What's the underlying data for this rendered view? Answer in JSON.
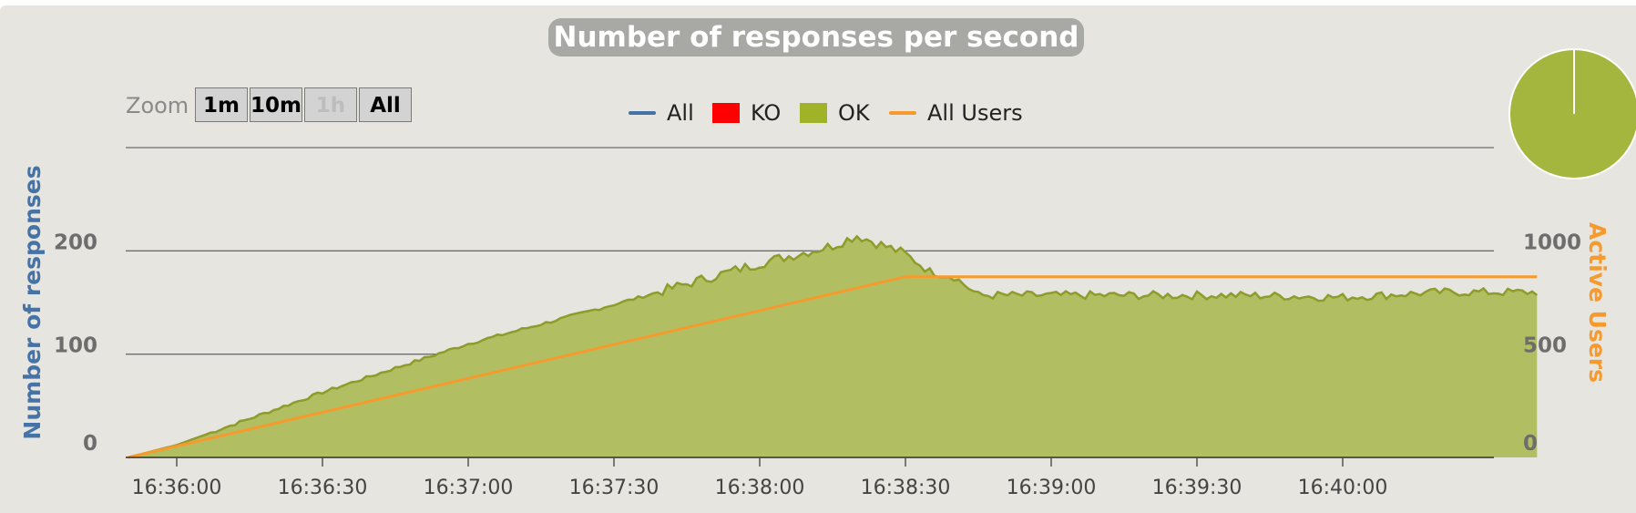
{
  "chart_data": {
    "type": "area",
    "title": "Number of responses per second",
    "ylabel": "Number of responses",
    "y2label": "Active Users",
    "ylim": [
      0,
      300
    ],
    "y2lim": [
      0,
      1500
    ],
    "yticks": [
      "0",
      "100",
      "200"
    ],
    "y2ticks": [
      "0",
      "500",
      "1000"
    ],
    "xticks": [
      "16:36:00",
      "16:36:30",
      "16:37:00",
      "16:37:30",
      "16:38:00",
      "16:38:30",
      "16:39:00",
      "16:39:30",
      "16:40:00"
    ],
    "legend": [
      {
        "name": "All",
        "color": "#4572a7",
        "kind": "line"
      },
      {
        "name": "KO",
        "color": "#ff0000",
        "kind": "box"
      },
      {
        "name": "OK",
        "color": "#a0b228",
        "kind": "box"
      },
      {
        "name": "All Users",
        "color": "#f79a2e",
        "kind": "line"
      }
    ],
    "x_start_seconds": -10,
    "series": [
      {
        "name": "OK",
        "color": "#a0b228",
        "points": [
          [
            -10,
            0
          ],
          [
            0,
            12
          ],
          [
            30,
            63
          ],
          [
            60,
            110
          ],
          [
            90,
            148
          ],
          [
            120,
            188
          ],
          [
            135,
            205
          ],
          [
            140,
            215
          ],
          [
            150,
            197
          ],
          [
            155,
            180
          ],
          [
            160,
            175
          ],
          [
            165,
            157
          ],
          [
            180,
            157
          ],
          [
            200,
            157
          ],
          [
            220,
            157
          ],
          [
            240,
            155
          ],
          [
            260,
            160
          ],
          [
            280,
            160
          ]
        ]
      },
      {
        "name": "All Users",
        "color": "#f79a2e",
        "points": [
          [
            -10,
            0
          ],
          [
            150,
            875
          ],
          [
            280,
            875
          ]
        ]
      }
    ],
    "pie": {
      "OK": 99.8,
      "KO": 0.2
    }
  },
  "zoom": {
    "label": "Zoom",
    "buttons": [
      "1m",
      "10m",
      "1h",
      "All"
    ]
  }
}
